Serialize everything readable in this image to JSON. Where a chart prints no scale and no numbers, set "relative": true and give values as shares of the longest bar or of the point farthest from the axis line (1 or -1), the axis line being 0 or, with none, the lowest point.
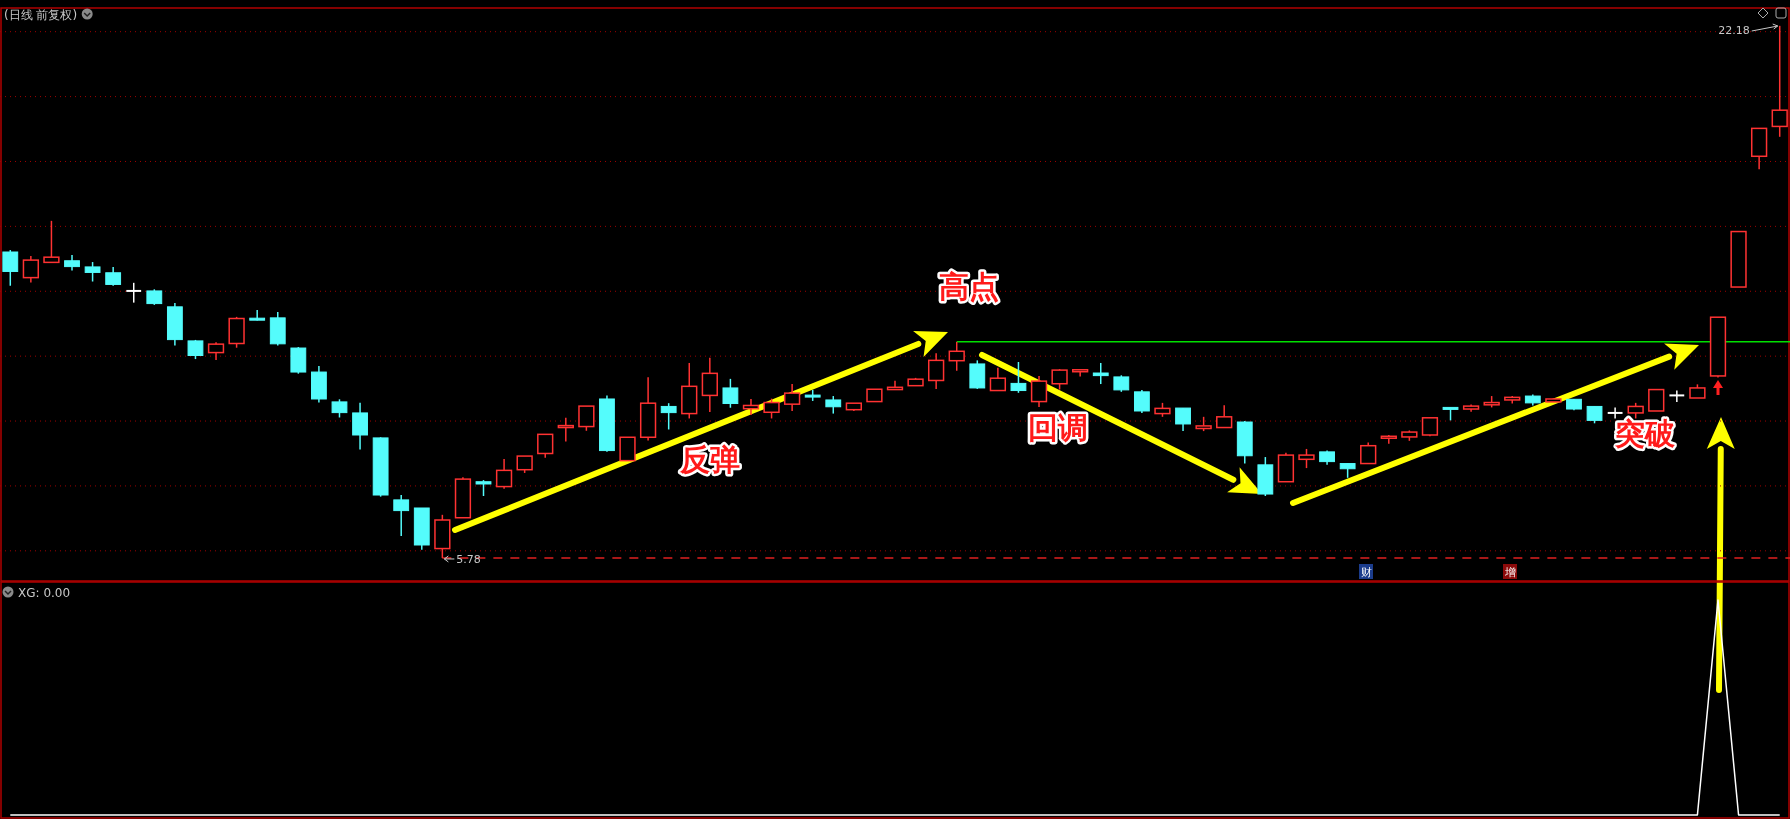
{
  "chart_data": [
    {
      "type": "candlestick",
      "title": "(日线 前复权)",
      "grid": "y",
      "ylim": [
        5.07,
        22.73
      ],
      "yticks": [
        {
          "value": 6,
          "label": null
        },
        {
          "value": 8,
          "label": null
        },
        {
          "value": 10,
          "label": null
        },
        {
          "value": 12,
          "label": null
        },
        {
          "value": 14,
          "label": null
        },
        {
          "value": 16,
          "label": null
        },
        {
          "value": 18,
          "label": null
        },
        {
          "value": 20,
          "label": null
        },
        {
          "value": 22,
          "label": null
        }
      ],
      "categories": [
        null,
        null,
        null,
        null,
        null,
        null,
        null,
        null,
        null,
        null,
        null,
        null,
        null,
        null,
        null,
        null,
        null,
        null,
        null,
        null,
        null,
        null,
        null,
        null,
        null,
        null,
        null,
        null,
        null,
        null,
        null,
        null,
        null,
        null,
        null,
        null,
        null,
        null,
        null,
        null,
        null,
        null,
        null,
        null,
        null,
        null,
        null,
        null,
        null,
        null,
        null,
        null,
        null,
        null,
        null,
        null,
        null,
        null,
        null,
        null,
        null,
        null,
        null,
        null,
        null,
        null,
        null,
        null,
        null,
        null,
        null,
        null,
        null,
        null,
        null,
        null,
        null,
        null,
        null,
        null,
        null,
        null,
        null,
        null,
        null,
        null,
        null
      ],
      "ohlc": [
        [
          15.21,
          15.27,
          14.17,
          14.61
        ],
        [
          14.42,
          15.09,
          14.27,
          14.96
        ],
        [
          14.89,
          16.17,
          14.89,
          15.05
        ],
        [
          14.94,
          15.12,
          14.64,
          14.76
        ],
        [
          14.75,
          14.9,
          14.3,
          14.58
        ],
        [
          14.57,
          14.75,
          14.17,
          14.21
        ],
        [
          14.01,
          14.26,
          13.65,
          14.01
        ],
        [
          14.01,
          14.06,
          13.58,
          13.62
        ],
        [
          13.52,
          13.64,
          12.33,
          12.51
        ],
        [
          12.47,
          12.5,
          11.91,
          12.02
        ],
        [
          12.11,
          12.43,
          11.88,
          12.37
        ],
        [
          12.39,
          13.21,
          12.26,
          13.16
        ],
        [
          13.17,
          13.42,
          13.1,
          13.16
        ],
        [
          13.18,
          13.36,
          12.33,
          12.38
        ],
        [
          12.25,
          12.28,
          11.46,
          11.51
        ],
        [
          11.51,
          11.7,
          10.57,
          10.68
        ],
        [
          10.59,
          10.67,
          10.11,
          10.26
        ],
        [
          10.25,
          10.56,
          9.12,
          9.57
        ],
        [
          9.48,
          9.5,
          7.67,
          7.72
        ],
        [
          7.57,
          7.72,
          6.46,
          7.24
        ],
        [
          7.32,
          7.32,
          6.03,
          6.18
        ],
        [
          6.07,
          7.11,
          5.78,
          6.95
        ],
        [
          7.02,
          8.27,
          7.02,
          8.21
        ],
        [
          8.13,
          8.18,
          7.69,
          8.06
        ],
        [
          7.98,
          8.83,
          7.91,
          8.48
        ],
        [
          8.5,
          8.92,
          8.4,
          8.92
        ],
        [
          9.0,
          9.59,
          8.87,
          9.59
        ],
        [
          9.8,
          10.1,
          9.37,
          9.86
        ],
        [
          9.83,
          10.46,
          9.7,
          10.46
        ],
        [
          10.68,
          10.79,
          9.05,
          9.09
        ],
        [
          8.78,
          9.5,
          8.78,
          9.5
        ],
        [
          9.5,
          11.35,
          9.4,
          10.55
        ],
        [
          10.45,
          10.55,
          9.74,
          10.26
        ],
        [
          10.23,
          11.79,
          10.08,
          11.07
        ],
        [
          10.79,
          11.95,
          10.28,
          11.47
        ],
        [
          11.02,
          11.3,
          10.41,
          10.54
        ],
        [
          10.38,
          10.68,
          10.19,
          10.48
        ],
        [
          10.27,
          10.69,
          10.08,
          10.57
        ],
        [
          10.52,
          11.14,
          10.31,
          10.86
        ],
        [
          10.8,
          10.96,
          10.62,
          10.79
        ],
        [
          10.65,
          10.77,
          10.23,
          10.44
        ],
        [
          10.35,
          10.55,
          10.31,
          10.55
        ],
        [
          10.6,
          10.98,
          10.6,
          10.98
        ],
        [
          10.97,
          11.24,
          10.97,
          11.04
        ],
        [
          11.09,
          11.33,
          11.09,
          11.29
        ],
        [
          11.25,
          12.09,
          10.99,
          11.87
        ],
        [
          11.86,
          12.44,
          11.55,
          12.15
        ],
        [
          11.76,
          11.87,
          10.99,
          11.02
        ],
        [
          10.94,
          11.64,
          10.94,
          11.32
        ],
        [
          11.16,
          11.82,
          10.87,
          10.94
        ],
        [
          10.6,
          11.39,
          10.43,
          11.23
        ],
        [
          11.15,
          11.6,
          10.97,
          11.57
        ],
        [
          11.52,
          11.58,
          11.37,
          11.58
        ],
        [
          11.48,
          11.79,
          11.14,
          11.4
        ],
        [
          11.36,
          11.41,
          10.9,
          10.96
        ],
        [
          10.9,
          10.96,
          10.25,
          10.31
        ],
        [
          10.23,
          10.56,
          10.13,
          10.39
        ],
        [
          10.4,
          10.4,
          9.69,
          9.91
        ],
        [
          9.77,
          10.13,
          9.69,
          9.85
        ],
        [
          9.8,
          10.49,
          9.8,
          10.13
        ],
        [
          9.97,
          10.0,
          8.69,
          8.93
        ],
        [
          8.65,
          8.89,
          7.69,
          7.75
        ],
        [
          8.13,
          9.02,
          8.13,
          8.95
        ],
        [
          8.82,
          9.14,
          8.55,
          8.95
        ],
        [
          9.05,
          9.09,
          8.65,
          8.75
        ],
        [
          8.69,
          8.69,
          8.25,
          8.53
        ],
        [
          8.69,
          9.34,
          8.69,
          9.24
        ],
        [
          9.47,
          9.57,
          9.3,
          9.53
        ],
        [
          9.51,
          9.71,
          9.39,
          9.66
        ],
        [
          9.57,
          10.1,
          9.53,
          10.1
        ],
        [
          10.42,
          10.42,
          10.02,
          10.38
        ],
        [
          10.37,
          10.51,
          10.29,
          10.46
        ],
        [
          10.5,
          10.77,
          10.42,
          10.57
        ],
        [
          10.65,
          10.77,
          10.54,
          10.73
        ],
        [
          10.77,
          10.82,
          10.48,
          10.56
        ],
        [
          10.59,
          10.7,
          10.59,
          10.68
        ],
        [
          10.67,
          10.67,
          10.33,
          10.37
        ],
        [
          10.45,
          10.45,
          9.93,
          10.02
        ],
        [
          10.25,
          10.42,
          10.08,
          10.25
        ],
        [
          10.25,
          10.56,
          10.08,
          10.45
        ],
        [
          10.31,
          10.97,
          10.31,
          10.97
        ],
        [
          10.79,
          10.94,
          10.59,
          10.79
        ],
        [
          10.71,
          11.13,
          10.71,
          11.02
        ],
        [
          11.39,
          13.2,
          11.34,
          13.2
        ],
        [
          14.13,
          15.84,
          14.13,
          15.84
        ],
        [
          18.16,
          19.02,
          17.76,
          19.02
        ],
        [
          19.08,
          22.18,
          18.76,
          19.58
        ]
      ],
      "colors": [
        "#54fcfc",
        "#ff3232",
        "#ff3232",
        "#54fcfc",
        "#54fcfc",
        "#54fcfc",
        "#ffffff",
        "#54fcfc",
        "#54fcfc",
        "#54fcfc",
        "#ff3232",
        "#ff3232",
        "#54fcfc",
        "#54fcfc",
        "#54fcfc",
        "#54fcfc",
        "#54fcfc",
        "#54fcfc",
        "#54fcfc",
        "#54fcfc",
        "#54fcfc",
        "#ff3232",
        "#ff3232",
        "#54fcfc",
        "#ff3232",
        "#ff3232",
        "#ff3232",
        "#ff3232",
        "#ff3232",
        "#54fcfc",
        "#ff3232",
        "#ff3232",
        "#54fcfc",
        "#ff3232",
        "#ff3232",
        "#54fcfc",
        "#ff3232",
        "#ff3232",
        "#ff3232",
        "#54fcfc",
        "#54fcfc",
        "#ff3232",
        "#ff3232",
        "#ff3232",
        "#ff3232",
        "#ff3232",
        "#ff3232",
        "#54fcfc",
        "#ff3232",
        "#54fcfc",
        "#ff3232",
        "#ff3232",
        "#ff3232",
        "#54fcfc",
        "#54fcfc",
        "#54fcfc",
        "#ff3232",
        "#54fcfc",
        "#ff3232",
        "#ff3232",
        "#54fcfc",
        "#54fcfc",
        "#ff3232",
        "#ff3232",
        "#54fcfc",
        "#54fcfc",
        "#ff3232",
        "#ff3232",
        "#ff3232",
        "#ff3232",
        "#54fcfc",
        "#ff3232",
        "#ff3232",
        "#ff3232",
        "#54fcfc",
        "#ff3232",
        "#54fcfc",
        "#54fcfc",
        "#ffffff",
        "#ff3232",
        "#ff3232",
        "#ffffff",
        "#ff3232",
        "#ff3232",
        "#ff3232",
        "#ff3232",
        "#ff3232"
      ],
      "ref_lines": [
        {
          "axis": "y",
          "value": 12.44,
          "color": "#00e000",
          "line_style": "solid"
        },
        {
          "axis": "y",
          "value": 5.78,
          "color": "#e02020",
          "line_style": "dashed"
        }
      ],
      "annotations": [
        {
          "text": "5.78",
          "y": 5.78
        },
        "22.18",
        "高点",
        "反弹",
        "回调",
        "突破",
        "财",
        "增"
      ]
    },
    {
      "type": "line",
      "title": "XG: 0.00",
      "relative": true,
      "categories": [
        null,
        null,
        null,
        null,
        null,
        null,
        null,
        null,
        null,
        null,
        null,
        null,
        null,
        null,
        null,
        null,
        null,
        null,
        null,
        null,
        null,
        null,
        null,
        null,
        null,
        null,
        null,
        null,
        null,
        null,
        null,
        null,
        null,
        null,
        null,
        null,
        null,
        null,
        null,
        null,
        null,
        null,
        null,
        null,
        null,
        null,
        null,
        null,
        null,
        null,
        null,
        null,
        null,
        null,
        null,
        null,
        null,
        null,
        null,
        null,
        null,
        null,
        null,
        null,
        null,
        null,
        null,
        null,
        null,
        null,
        null,
        null,
        null,
        null,
        null,
        null,
        null,
        null,
        null,
        null,
        null,
        null,
        null,
        null,
        null,
        null,
        null
      ],
      "series": [
        {
          "color": "#ffffff",
          "values": [
            0,
            0,
            0,
            0,
            0,
            0,
            0,
            0,
            0,
            0,
            0,
            0,
            0,
            0,
            0,
            0,
            0,
            0,
            0,
            0,
            0,
            0,
            0,
            0,
            0,
            0,
            0,
            0,
            0,
            0,
            0,
            0,
            0,
            0,
            0,
            0,
            0,
            0,
            0,
            0,
            0,
            0,
            0,
            0,
            0,
            0,
            0,
            0,
            0,
            0,
            0,
            0,
            0,
            0,
            0,
            0,
            0,
            0,
            0,
            0,
            0,
            0,
            0,
            0,
            0,
            0,
            0,
            0,
            0,
            0,
            0,
            0,
            0,
            0,
            0,
            0,
            0,
            0,
            0,
            0,
            0,
            0,
            0,
            1,
            0,
            0,
            0
          ]
        }
      ]
    }
  ]
}
